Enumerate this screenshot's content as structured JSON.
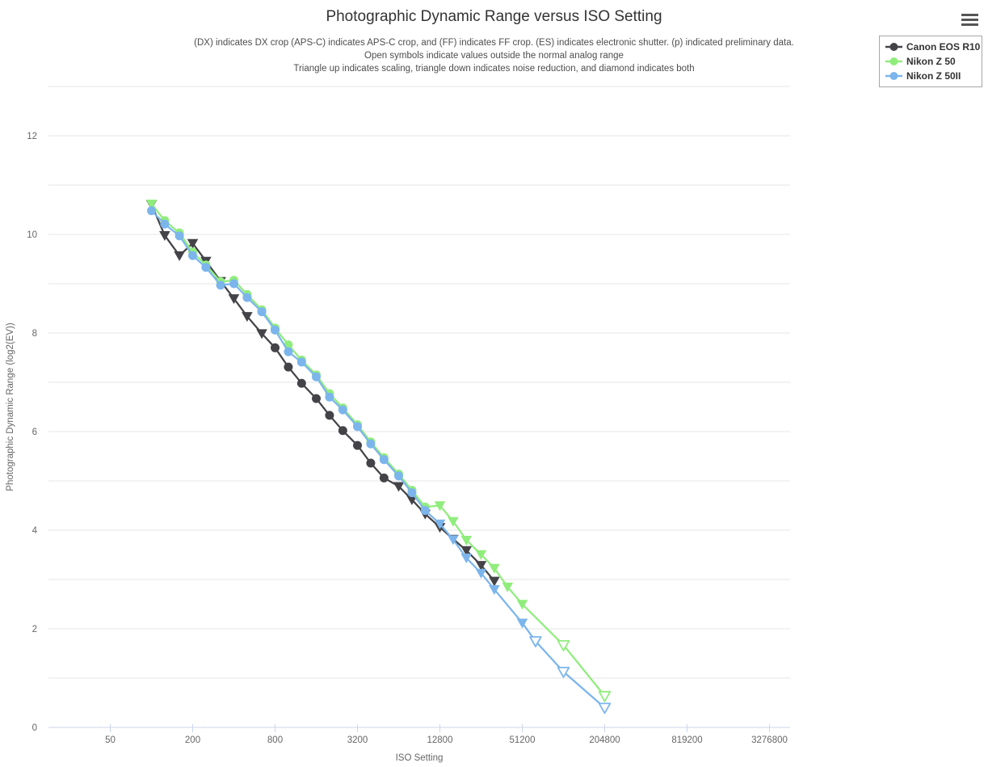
{
  "header": {
    "title": "Photographic Dynamic Range versus ISO Setting",
    "subtitle_lines": [
      "(DX) indicates DX crop (APS-C) indicates APS-C crop, and (FF) indicates FF crop. (ES) indicates electronic shutter. (p) indicated preliminary data.",
      "Open symbols indicate values outside the normal analog range",
      "Triangle up indicates scaling, triangle down indicates noise reduction, and diamond indicates both"
    ],
    "menu_icon": "hamburger-icon"
  },
  "legend": {
    "position": "top-right",
    "items": [
      {
        "label": "Canon EOS R10",
        "color": "#434348"
      },
      {
        "label": "Nikon Z 50",
        "color": "#90ed7d"
      },
      {
        "label": "Nikon Z 50II",
        "color": "#7cb5ec"
      }
    ]
  },
  "colors": {
    "grid": "#e6e6e6",
    "axis_line": "#ccd6eb",
    "tick_label": "#666666",
    "axis_title": "#666666",
    "title_text": "#333333",
    "open_marker_fill": "#ffffff"
  },
  "chart_data": {
    "type": "line",
    "title": "Photographic Dynamic Range versus ISO Setting",
    "xlabel": "ISO Setting",
    "ylabel": "Photographic Dynamic Range (log2(EV))",
    "x_scale": "log2",
    "x_tick_labels": [
      50,
      200,
      800,
      3200,
      12800,
      51200,
      204800,
      819200,
      3276800
    ],
    "ylim": [
      0,
      13
    ],
    "y_gridline_step": 1,
    "y_major_tick_labels": [
      0,
      2,
      4,
      6,
      8,
      10,
      12
    ],
    "grid": "horizontal only",
    "legend_position": "top-right",
    "marker_codes": {
      "c": "filled circle",
      "t": "filled triangle-down (noise reduction)",
      "o": "open triangle-down (noise reduction, outside normal analog range)"
    },
    "series": [
      {
        "name": "Canon EOS R10",
        "color": "#434348",
        "points": [
          [
            100,
            10.61,
            "t"
          ],
          [
            125,
            9.98,
            "t"
          ],
          [
            160,
            9.57,
            "t"
          ],
          [
            200,
            9.82,
            "t"
          ],
          [
            250,
            9.46,
            "t"
          ],
          [
            320,
            9.05,
            "t"
          ],
          [
            400,
            8.7,
            "t"
          ],
          [
            500,
            8.34,
            "t"
          ],
          [
            640,
            7.99,
            "t"
          ],
          [
            800,
            7.7,
            "c"
          ],
          [
            1000,
            7.31,
            "c"
          ],
          [
            1250,
            6.98,
            "c"
          ],
          [
            1600,
            6.67,
            "c"
          ],
          [
            2000,
            6.33,
            "c"
          ],
          [
            2500,
            6.02,
            "c"
          ],
          [
            3200,
            5.72,
            "c"
          ],
          [
            4000,
            5.36,
            "c"
          ],
          [
            5000,
            5.06,
            "c"
          ],
          [
            6400,
            4.89,
            "t"
          ],
          [
            8000,
            4.62,
            "t"
          ],
          [
            10000,
            4.33,
            "t"
          ],
          [
            12800,
            4.06,
            "t"
          ],
          [
            16000,
            3.82,
            "t"
          ],
          [
            20000,
            3.59,
            "t"
          ],
          [
            25600,
            3.29,
            "t"
          ],
          [
            32000,
            2.97,
            "t"
          ]
        ]
      },
      {
        "name": "Nikon Z 50",
        "color": "#90ed7d",
        "points": [
          [
            100,
            10.62,
            "t"
          ],
          [
            125,
            10.28,
            "c"
          ],
          [
            160,
            10.03,
            "c"
          ],
          [
            200,
            9.64,
            "c"
          ],
          [
            250,
            9.38,
            "c"
          ],
          [
            320,
            9.04,
            "c"
          ],
          [
            400,
            9.07,
            "c"
          ],
          [
            500,
            8.78,
            "c"
          ],
          [
            640,
            8.47,
            "c"
          ],
          [
            800,
            8.1,
            "c"
          ],
          [
            1000,
            7.76,
            "c"
          ],
          [
            1250,
            7.45,
            "c"
          ],
          [
            1600,
            7.15,
            "c"
          ],
          [
            2000,
            6.77,
            "c"
          ],
          [
            2500,
            6.48,
            "c"
          ],
          [
            3200,
            6.14,
            "c"
          ],
          [
            4000,
            5.79,
            "c"
          ],
          [
            5000,
            5.47,
            "c"
          ],
          [
            6400,
            5.14,
            "c"
          ],
          [
            8000,
            4.81,
            "c"
          ],
          [
            10000,
            4.47,
            "c"
          ],
          [
            12800,
            4.5,
            "t"
          ],
          [
            16000,
            4.18,
            "t"
          ],
          [
            20000,
            3.8,
            "t"
          ],
          [
            25600,
            3.51,
            "t"
          ],
          [
            32000,
            3.23,
            "t"
          ],
          [
            40000,
            2.85,
            "t"
          ],
          [
            51200,
            2.5,
            "t"
          ],
          [
            102400,
            1.67,
            "o"
          ],
          [
            204800,
            0.64,
            "o"
          ]
        ]
      },
      {
        "name": "Nikon Z 50II",
        "color": "#7cb5ec",
        "points": [
          [
            100,
            10.48,
            "c"
          ],
          [
            125,
            10.21,
            "c"
          ],
          [
            160,
            9.97,
            "c"
          ],
          [
            200,
            9.57,
            "c"
          ],
          [
            250,
            9.33,
            "c"
          ],
          [
            320,
            8.97,
            "c"
          ],
          [
            400,
            9.0,
            "c"
          ],
          [
            500,
            8.72,
            "c"
          ],
          [
            640,
            8.43,
            "c"
          ],
          [
            800,
            8.06,
            "c"
          ],
          [
            1000,
            7.62,
            "c"
          ],
          [
            1250,
            7.41,
            "c"
          ],
          [
            1600,
            7.11,
            "c"
          ],
          [
            2000,
            6.7,
            "c"
          ],
          [
            2500,
            6.44,
            "c"
          ],
          [
            3200,
            6.1,
            "c"
          ],
          [
            4000,
            5.75,
            "c"
          ],
          [
            5000,
            5.43,
            "c"
          ],
          [
            6400,
            5.1,
            "c"
          ],
          [
            8000,
            4.76,
            "c"
          ],
          [
            10000,
            4.4,
            "c"
          ],
          [
            12800,
            4.13,
            "t"
          ],
          [
            16000,
            3.81,
            "t"
          ],
          [
            20000,
            3.44,
            "t"
          ],
          [
            25600,
            3.13,
            "t"
          ],
          [
            32000,
            2.8,
            "t"
          ],
          [
            51200,
            2.12,
            "t"
          ],
          [
            64000,
            1.75,
            "o"
          ],
          [
            102400,
            1.13,
            "o"
          ],
          [
            204800,
            0.4,
            "o"
          ]
        ]
      }
    ]
  }
}
